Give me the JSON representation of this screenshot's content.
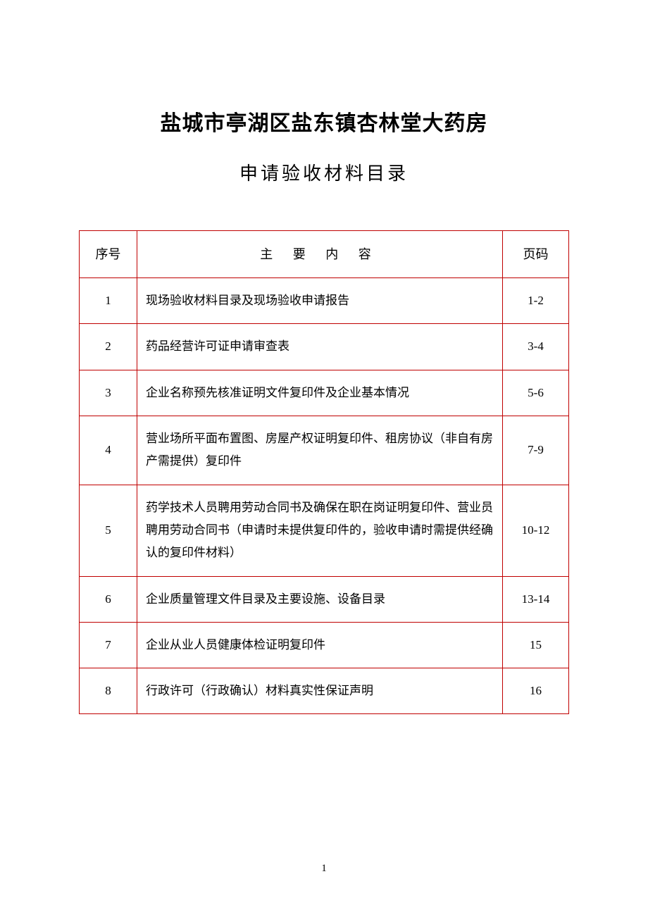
{
  "title_main": "盐城市亭湖区盐东镇杏林堂大药房",
  "title_sub": "申请验收材料目录",
  "header": {
    "seq": "序号",
    "content": "主 要 内 容",
    "page": "页码"
  },
  "rows": [
    {
      "seq": "1",
      "content": "现场验收材料目录及现场验收申请报告",
      "page": "1-2"
    },
    {
      "seq": "2",
      "content": "药品经营许可证申请审查表",
      "page": "3-4"
    },
    {
      "seq": "3",
      "content": "企业名称预先核准证明文件复印件及企业基本情况",
      "page": "5-6"
    },
    {
      "seq": "4",
      "content": "营业场所平面布置图、房屋产权证明复印件、租房协议（非自有房产需提供）复印件",
      "page": "7-9"
    },
    {
      "seq": "5",
      "content": "药学技术人员聘用劳动合同书及确保在职在岗证明复印件、营业员聘用劳动合同书（申请时未提供复印件的，验收申请时需提供经确认的复印件材料）",
      "page": "10-12"
    },
    {
      "seq": "6",
      "content": "企业质量管理文件目录及主要设施、设备目录",
      "page": "13-14"
    },
    {
      "seq": "7",
      "content": "企业从业人员健康体检证明复印件",
      "page": "15"
    },
    {
      "seq": "8",
      "content": "行政许可（行政确认）材料真实性保证声明",
      "page": "16"
    }
  ],
  "page_number": "1",
  "colors": {
    "border": "#c00000",
    "text": "#000000",
    "background": "#ffffff"
  }
}
